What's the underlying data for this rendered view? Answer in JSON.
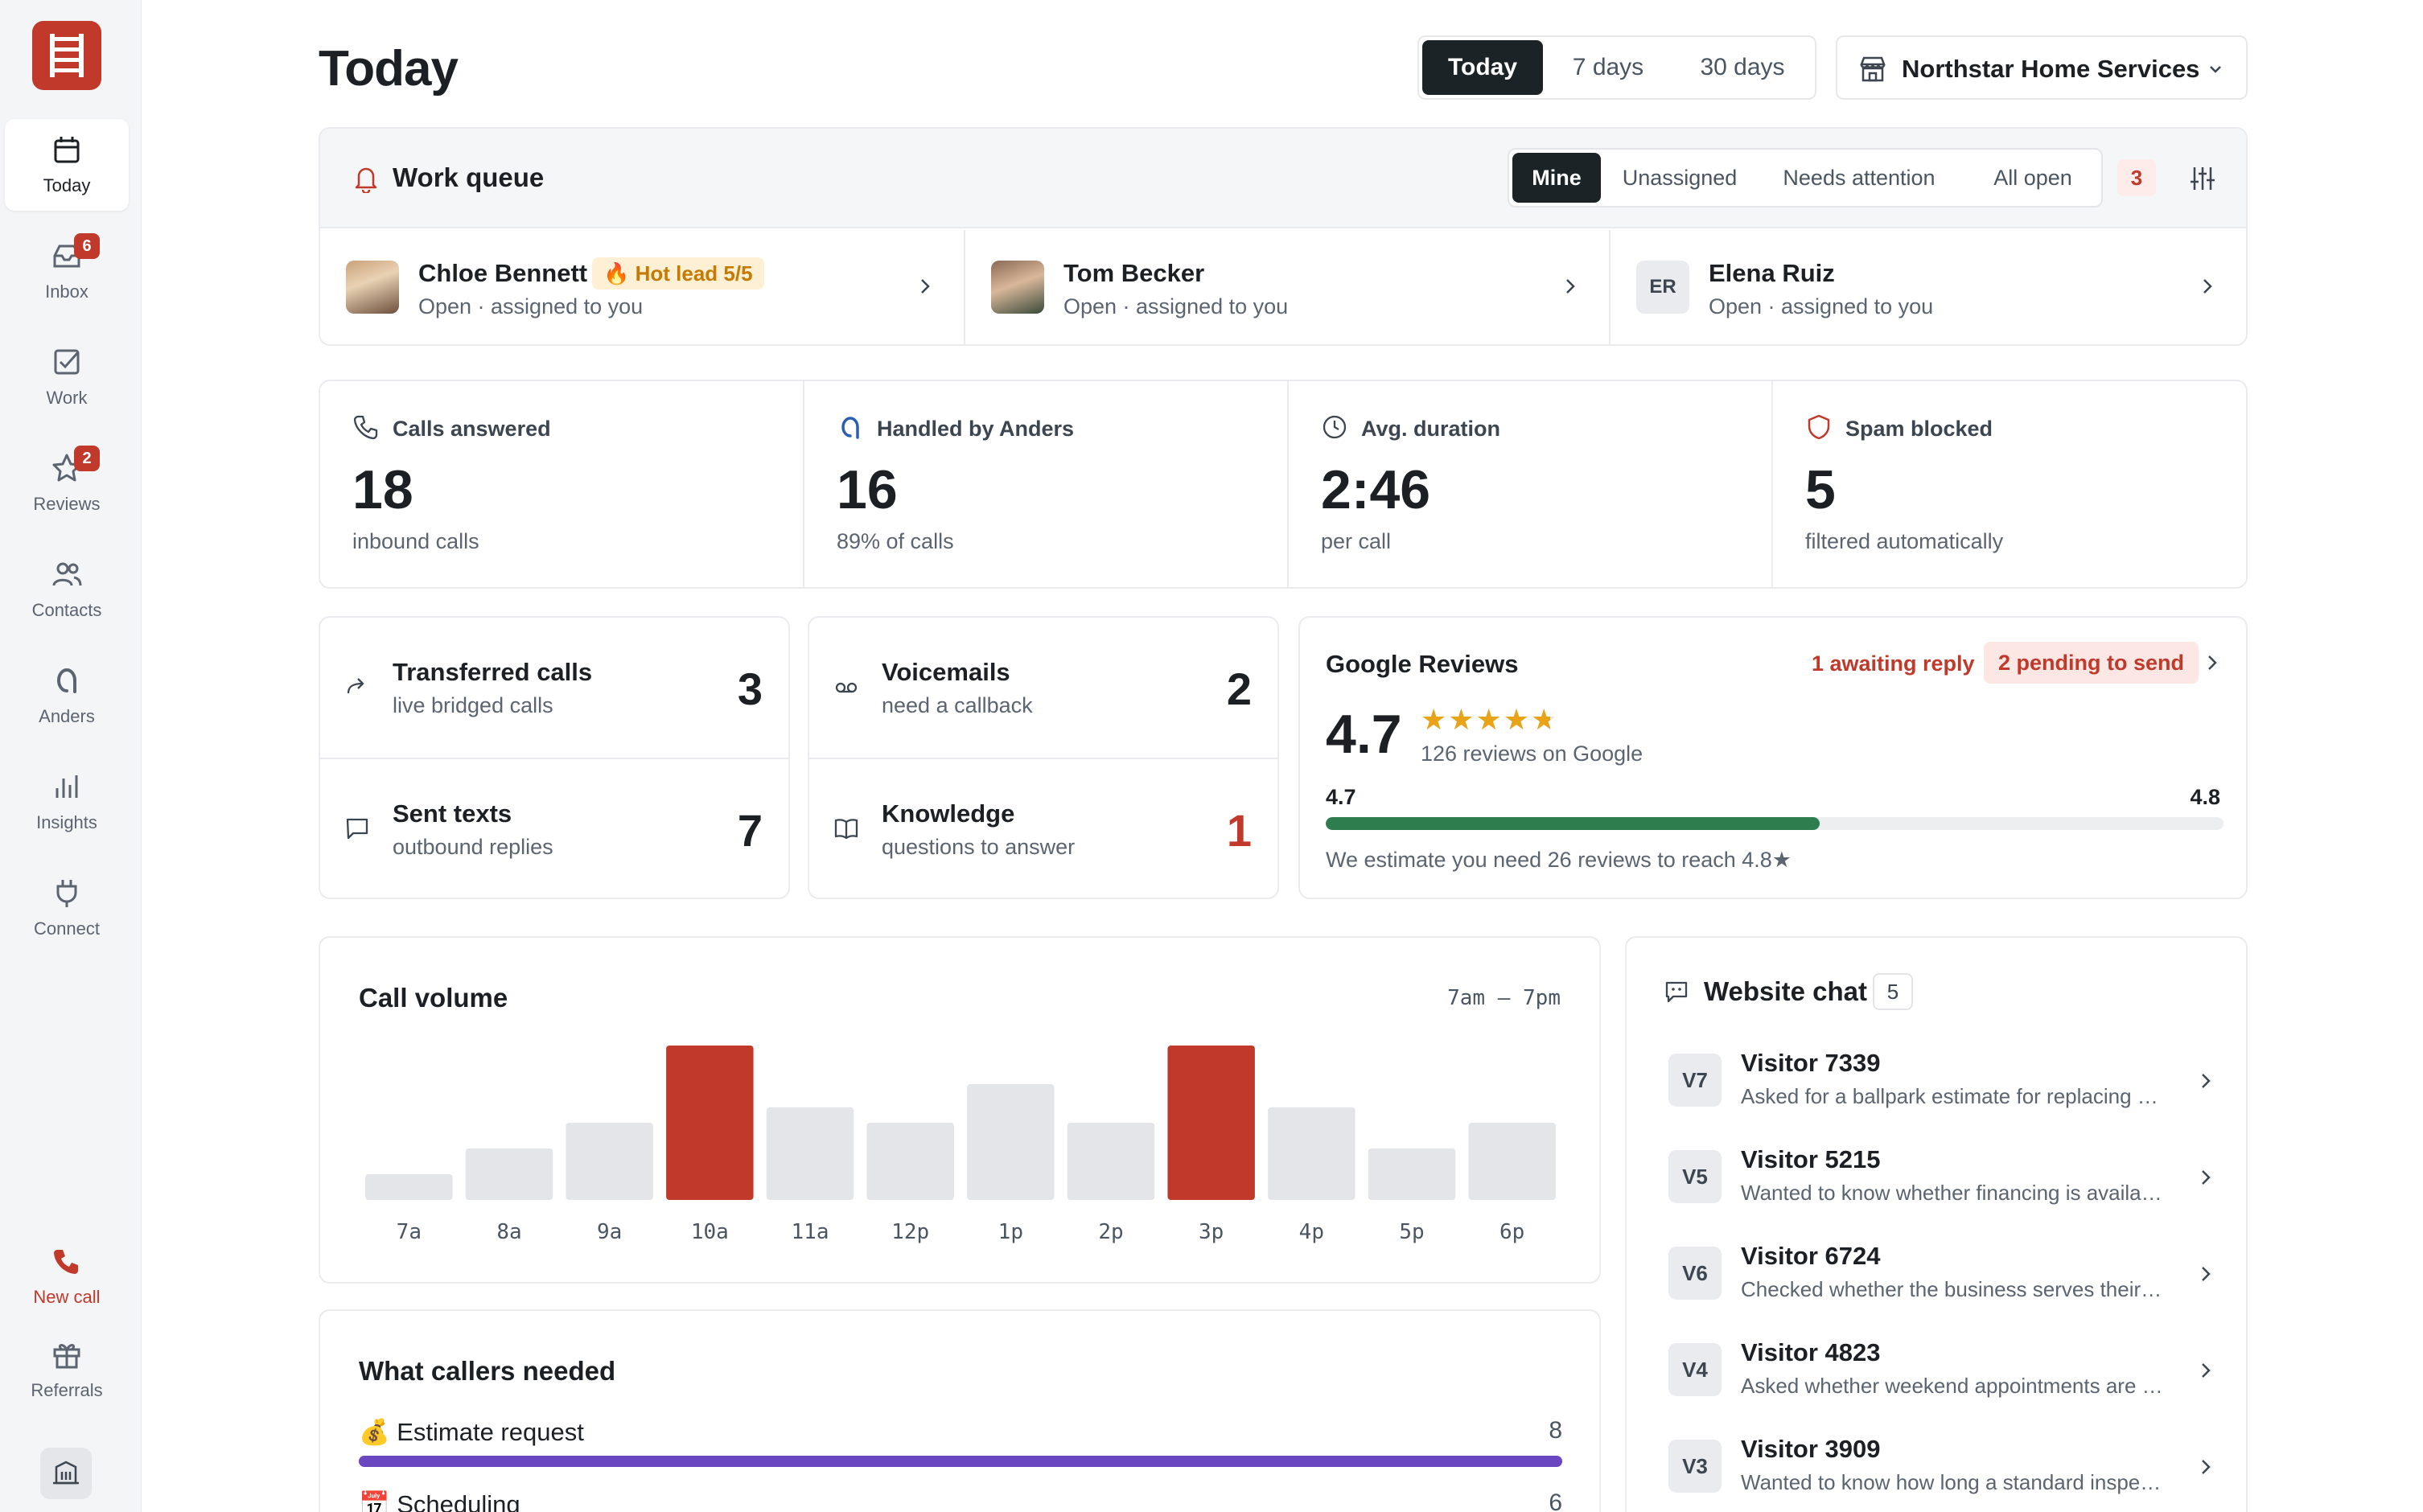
{
  "sidebar": {
    "items": [
      {
        "label": "Today",
        "icon": "calendar-icon"
      },
      {
        "label": "Inbox",
        "icon": "inbox-icon",
        "badge": "6"
      },
      {
        "label": "Work",
        "icon": "checkbox-icon"
      },
      {
        "label": "Reviews",
        "icon": "star-icon",
        "badge": "2"
      },
      {
        "label": "Contacts",
        "icon": "users-icon"
      },
      {
        "label": "Anders",
        "icon": "anders-icon"
      },
      {
        "label": "Insights",
        "icon": "bar-chart-icon"
      },
      {
        "label": "Connect",
        "icon": "plug-icon"
      }
    ],
    "new_call": "New call",
    "referrals": "Referrals"
  },
  "header": {
    "title": "Today",
    "ranges": [
      "Today",
      "7 days",
      "30 days"
    ],
    "business": "Northstar Home Services"
  },
  "work_queue": {
    "title": "Work queue",
    "tabs": [
      "Mine",
      "Unassigned",
      "Needs attention",
      "All open"
    ],
    "count": "3",
    "people": [
      {
        "name": "Chloe Bennett",
        "status": "Open · assigned to you",
        "tag": "🔥 Hot lead 5/5"
      },
      {
        "name": "Tom Becker",
        "status": "Open · assigned to you"
      },
      {
        "name": "Elena Ruiz",
        "status": "Open · assigned to you",
        "initials": "ER"
      }
    ]
  },
  "stats": [
    {
      "label": "Calls answered",
      "value": "18",
      "sub": "inbound calls"
    },
    {
      "label": "Handled by Anders",
      "value": "16",
      "sub": "89% of calls"
    },
    {
      "label": "Avg. duration",
      "value": "2:46",
      "sub": "per call"
    },
    {
      "label": "Spam blocked",
      "value": "5",
      "sub": "filtered automatically"
    }
  ],
  "tiles": {
    "left": [
      {
        "name": "Transferred calls",
        "sub": "live bridged calls",
        "value": "3"
      },
      {
        "name": "Sent texts",
        "sub": "outbound replies",
        "value": "7"
      }
    ],
    "right": [
      {
        "name": "Voicemails",
        "sub": "need a callback",
        "value": "2"
      },
      {
        "name": "Knowledge",
        "sub": "questions to answer",
        "value": "1"
      }
    ]
  },
  "reviews": {
    "title": "Google Reviews",
    "awaiting": "1 awaiting reply",
    "pending": "2 pending to send",
    "score": "4.7",
    "stars": "★★★★★",
    "rating": 4.7,
    "count_label": "126 reviews on Google",
    "current": "4.7",
    "target": "4.8",
    "progress": 0.55,
    "estimate": "We estimate you need 26 reviews to reach 4.8★"
  },
  "call_volume": {
    "title": "Call volume",
    "range": "7am – 7pm"
  },
  "chart_data": {
    "type": "bar",
    "title": "Call volume",
    "categories": [
      "7a",
      "8a",
      "9a",
      "10a",
      "11a",
      "12p",
      "1p",
      "2p",
      "3p",
      "4p",
      "5p",
      "6p"
    ],
    "values": [
      1,
      2,
      3,
      6,
      3.6,
      3,
      4.5,
      3,
      6,
      3.6,
      2,
      3
    ],
    "highlight": [
      "10a",
      "3p"
    ],
    "colors": {
      "normal": "#e3e5e8",
      "highlight": "#c0392b"
    }
  },
  "callers_needed": {
    "title": "What callers needed",
    "rows": [
      {
        "label": "💰 Estimate request",
        "value": "8",
        "fraction": 1.0
      },
      {
        "label": "📅 Scheduling",
        "value": "6",
        "fraction": 0.75
      }
    ]
  },
  "website_chat": {
    "title": "Website chat",
    "count": "5",
    "items": [
      {
        "initials": "V7",
        "name": "Visitor 7339",
        "message": "Asked for a ballpark estimate for replacing a water heater"
      },
      {
        "initials": "V5",
        "name": "Visitor 5215",
        "message": "Wanted to know whether financing is available for larger jobs"
      },
      {
        "initials": "V6",
        "name": "Visitor 6724",
        "message": "Checked whether the business serves their neighborhood"
      },
      {
        "initials": "V4",
        "name": "Visitor 4823",
        "message": "Asked whether weekend appointments are available"
      },
      {
        "initials": "V3",
        "name": "Visitor 3909",
        "message": "Wanted to know how long a standard inspection takes"
      }
    ]
  },
  "colors": {
    "accent": "#c0392b",
    "dark": "#1c2327",
    "progress_green": "#2e7d4f",
    "bar_purple": "#6b46c1",
    "star": "#e8a317"
  }
}
